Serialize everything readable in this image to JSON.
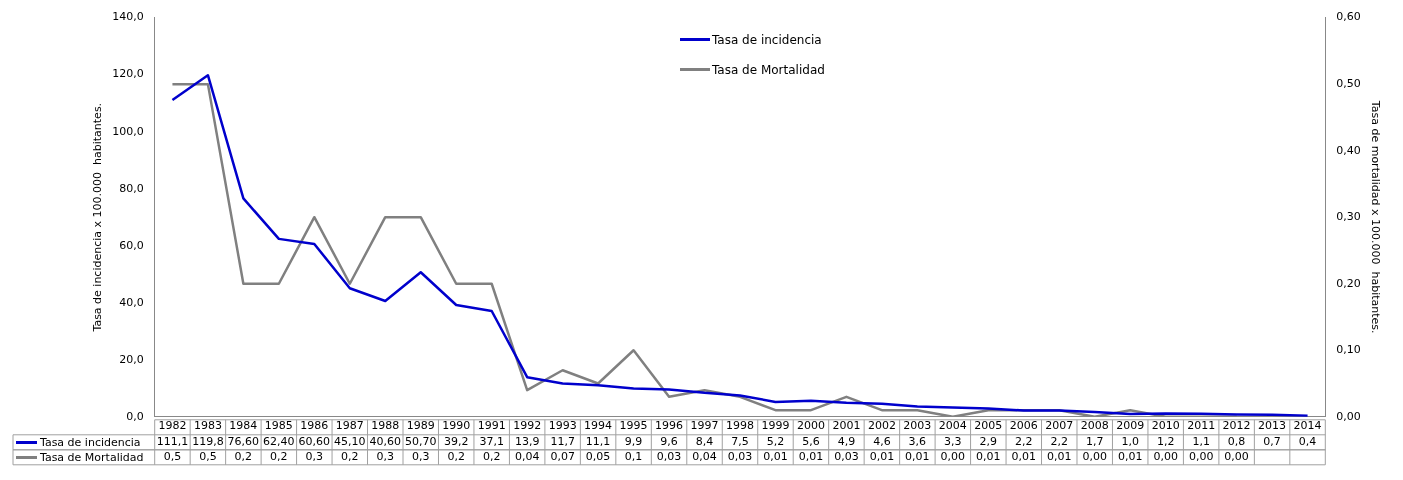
{
  "chart_data": {
    "type": "line",
    "ylabel": "Tasa de incidencia x 100.000  habitantes.",
    "y2label": "Tasa de mortalidad x 100.000  habitantes.",
    "categories": [
      "1982",
      "1983",
      "1984",
      "1985",
      "1986",
      "1987",
      "1988",
      "1989",
      "1990",
      "1991",
      "1992",
      "1993",
      "1994",
      "1995",
      "1996",
      "1997",
      "1998",
      "1999",
      "2000",
      "2001",
      "2002",
      "2003",
      "2004",
      "2005",
      "2006",
      "2007",
      "2008",
      "2009",
      "2010",
      "2011",
      "2012",
      "2013",
      "2014"
    ],
    "series": [
      {
        "name": "Tasa de incidencia",
        "color": "#0000cc",
        "values": [
          111.1,
          119.8,
          76.6,
          62.4,
          60.6,
          45.1,
          40.6,
          50.7,
          39.2,
          37.1,
          13.9,
          11.7,
          11.1,
          9.9,
          9.6,
          8.4,
          7.5,
          5.2,
          5.6,
          4.9,
          4.6,
          3.6,
          3.3,
          2.9,
          2.2,
          2.2,
          1.7,
          1.0,
          1.2,
          1.1,
          0.8,
          0.7,
          0.4
        ],
        "value_labels": [
          "111,1",
          "119,8",
          "76,60",
          "62,40",
          "60,60",
          "45,10",
          "40,60",
          "50,70",
          "39,2",
          "37,1",
          "13,9",
          "11,7",
          "11,1",
          "9,9",
          "9,6",
          "8,4",
          "7,5",
          "5,2",
          "5,6",
          "4,9",
          "4,6",
          "3,6",
          "3,3",
          "2,9",
          "2,2",
          "2,2",
          "1,7",
          "1,0",
          "1,2",
          "1,1",
          "0,8",
          "0,7",
          "0,4"
        ]
      },
      {
        "name": "Tasa de Mortalidad",
        "color": "#808080",
        "axis": "y2",
        "values": [
          0.5,
          0.5,
          0.2,
          0.2,
          0.3,
          0.2,
          0.3,
          0.3,
          0.2,
          0.2,
          0.04,
          0.07,
          0.05,
          0.1,
          0.03,
          0.04,
          0.03,
          0.01,
          0.01,
          0.03,
          0.01,
          0.01,
          0.0,
          0.01,
          0.01,
          0.01,
          0.0,
          0.01,
          0.0,
          0.0,
          0.0,
          null,
          null
        ],
        "value_labels": [
          "0,5",
          "0,5",
          "0,2",
          "0,2",
          "0,3",
          "0,2",
          "0,3",
          "0,3",
          "0,2",
          "0,2",
          "0,04",
          "0,07",
          "0,05",
          "0,1",
          "0,03",
          "0,04",
          "0,03",
          "0,01",
          "0,01",
          "0,03",
          "0,01",
          "0,01",
          "0,00",
          "0,01",
          "0,01",
          "0,01",
          "0,00",
          "0,01",
          "0,00",
          "0,00",
          "0,00",
          null,
          null
        ]
      }
    ],
    "ylim": [
      0,
      140
    ],
    "yticks": [
      {
        "value": 0,
        "label": "0,0"
      },
      {
        "value": 20,
        "label": "20,0"
      },
      {
        "value": 40,
        "label": "40,0"
      },
      {
        "value": 60,
        "label": "60,0"
      },
      {
        "value": 80,
        "label": "80,0"
      },
      {
        "value": 100,
        "label": "100,0"
      },
      {
        "value": 120,
        "label": "120,0"
      },
      {
        "value": 140,
        "label": "140,0"
      }
    ],
    "y2lim": [
      0,
      0.6
    ],
    "y2ticks": [
      {
        "value": 0,
        "label": "0,00"
      },
      {
        "value": 0.1,
        "label": "0,10"
      },
      {
        "value": 0.2,
        "label": "0,20"
      },
      {
        "value": 0.3,
        "label": "0,30"
      },
      {
        "value": 0.4,
        "label": "0,40"
      },
      {
        "value": 0.5,
        "label": "0,50"
      },
      {
        "value": 0.6,
        "label": "0,60"
      }
    ],
    "grid": false,
    "legend": "top",
    "marker": "none",
    "line_style": "solid"
  }
}
